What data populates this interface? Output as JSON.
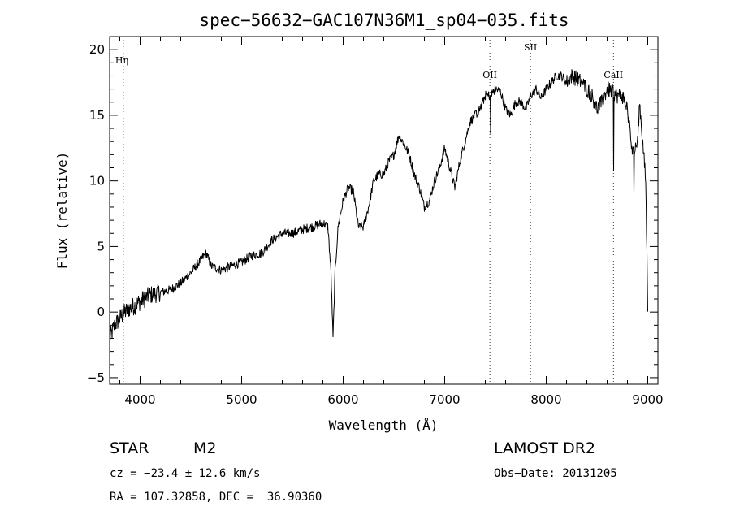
{
  "chart_data": {
    "type": "line",
    "title": "spec−56632−GAC107N36M1_sp04−035.fits",
    "xlabel": "Wavelength (Å)",
    "ylabel": "Flux (relative)",
    "xlim": [
      3700,
      9100
    ],
    "ylim": [
      -5.5,
      21
    ],
    "xticks": [
      4000,
      5000,
      6000,
      7000,
      8000,
      9000
    ],
    "yticks": [
      -5,
      0,
      5,
      10,
      15,
      20
    ],
    "grid": false,
    "series": [
      {
        "x": [
          3700,
          3750,
          3800,
          3850,
          3900,
          3950,
          4000,
          4100,
          4200,
          4300,
          4400,
          4500,
          4600,
          4650,
          4700,
          4800,
          4900,
          5000,
          5100,
          5200,
          5300,
          5400,
          5500,
          5600,
          5700,
          5800,
          5850,
          5880,
          5900,
          5920,
          5950,
          6000,
          6050,
          6100,
          6150,
          6200,
          6250,
          6300,
          6350,
          6400,
          6450,
          6500,
          6550,
          6600,
          6650,
          6700,
          6750,
          6800,
          6850,
          6900,
          6950,
          7000,
          7050,
          7100,
          7150,
          7200,
          7250,
          7300,
          7350,
          7400,
          7450,
          7500,
          7550,
          7600,
          7650,
          7700,
          7750,
          7800,
          7850,
          7900,
          7950,
          8000,
          8050,
          8100,
          8150,
          8200,
          8250,
          8300,
          8350,
          8400,
          8450,
          8500,
          8550,
          8600,
          8650,
          8700,
          8750,
          8800,
          8850,
          8900,
          8920,
          8950,
          8980,
          9000
        ],
        "y": [
          -2,
          -1,
          -0.5,
          0,
          0.3,
          0.5,
          0.8,
          1.3,
          1.5,
          1.7,
          2.2,
          3.0,
          4.0,
          4.5,
          3.5,
          3.2,
          3.5,
          3.8,
          4.3,
          4.5,
          5.5,
          6.0,
          6.0,
          6.3,
          6.5,
          6.8,
          6.5,
          3,
          -2,
          3,
          6.5,
          8.5,
          9.5,
          9.2,
          6.5,
          6.5,
          8,
          10,
          10.5,
          10.5,
          11.5,
          12,
          13.5,
          12.8,
          12.0,
          10.5,
          9.5,
          8.0,
          8.5,
          10,
          11,
          12.5,
          11,
          9.5,
          11.5,
          13,
          14.5,
          15,
          15.5,
          16.5,
          16.5,
          17,
          16.8,
          15.5,
          15,
          16,
          16,
          15.5,
          16.5,
          17,
          16.3,
          17,
          17.5,
          18,
          18,
          17.5,
          18,
          17.8,
          17.5,
          17,
          16.5,
          15.5,
          16,
          17,
          16.8,
          16.5,
          16.5,
          15.5,
          12,
          13,
          16,
          13,
          10,
          0.5
        ]
      }
    ],
    "lines": [
      {
        "label": "Hη",
        "x": 3835
      },
      {
        "label": "OII",
        "x": 7445
      },
      {
        "label": "SII",
        "x": 7845
      },
      {
        "label": "CaII",
        "x": 8662
      }
    ]
  },
  "info": {
    "object_class": "STAR",
    "subclass": "M2",
    "survey": "LAMOST DR2",
    "cz": "cz = −23.4 ± 12.6 km/s",
    "obs_date": "Obs−Date: 20131205",
    "radec": "RA = 107.32858, DEC =  36.90360"
  }
}
